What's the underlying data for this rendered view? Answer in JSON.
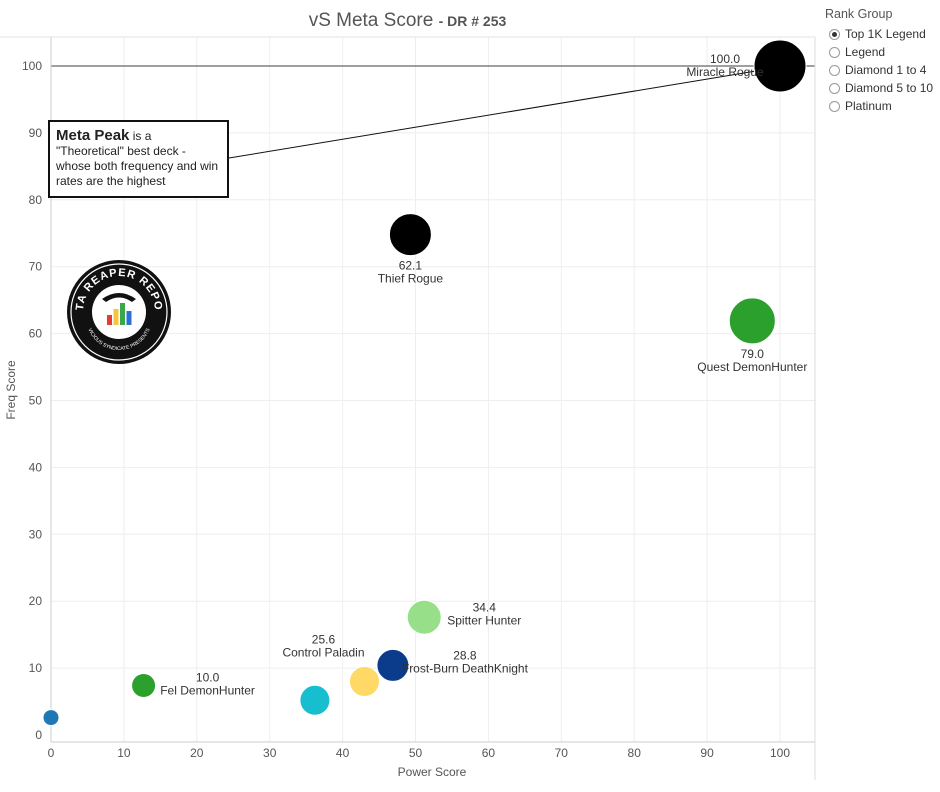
{
  "title": {
    "main": "vS Meta Score",
    "sub": "DR # 253"
  },
  "rank_group": {
    "title": "Rank Group",
    "options": [
      "Top 1K Legend",
      "Legend",
      "Diamond 1 to 4",
      "Diamond 5 to 10",
      "Platinum"
    ],
    "selected": "Top 1K Legend"
  },
  "callout": {
    "bold": "Meta Peak",
    "text": " is a \"Theoretical\" best deck - whose both frequency and win rates are the highest"
  },
  "logo": {
    "text": "DATA REAPER REPORT",
    "subtext": "VICIOUS SYNDICATE PRESENTS",
    "colors": [
      "#e63b2e",
      "#f5c542",
      "#3aa84a",
      "#2e6fd6"
    ]
  },
  "chart_data": {
    "type": "scatter",
    "xlabel": "Power Score",
    "ylabel": "Freq Score",
    "xlim": [
      0,
      104
    ],
    "ylim": [
      0,
      105
    ],
    "x_ticks": [
      0,
      10,
      20,
      30,
      40,
      50,
      60,
      70,
      80,
      90,
      100
    ],
    "y_ticks": [
      0,
      10,
      20,
      30,
      40,
      50,
      60,
      70,
      80,
      90,
      100
    ],
    "grid": true,
    "reference_line_y": 100,
    "points": [
      {
        "name": "Miracle Rogue",
        "score": "100.0",
        "x": 100,
        "y": 100,
        "size": 26,
        "color": "#000000",
        "label_pos": "left"
      },
      {
        "name": "Thief Rogue",
        "score": "62.1",
        "x": 49.3,
        "y": 74.8,
        "size": 21,
        "color": "#000000",
        "label_pos": "below"
      },
      {
        "name": "Quest DemonHunter",
        "score": "79.0",
        "x": 96.2,
        "y": 61.9,
        "size": 23,
        "color": "#2ca02c",
        "label_pos": "below"
      },
      {
        "name": "Spitter Hunter",
        "score": "34.4",
        "x": 51.2,
        "y": 17.6,
        "size": 17,
        "color": "#98df8a",
        "label_pos": "right"
      },
      {
        "name": "Frost-Burn DeathKnight",
        "score": "28.8",
        "x": 46.9,
        "y": 10.4,
        "size": 16,
        "color": "#0b3c8c",
        "label_pos": "right"
      },
      {
        "name": "Control Paladin",
        "score": "25.6",
        "x": 43,
        "y": 8,
        "size": 15,
        "color": "#ffd966",
        "label_pos": "above-left"
      },
      {
        "name": "Fel DemonHunter",
        "score": "10.0",
        "x": 12.7,
        "y": 7.4,
        "size": 12,
        "color": "#2ca02c",
        "label_pos": "right"
      },
      {
        "name": "",
        "score": "",
        "x": 36.2,
        "y": 5.2,
        "size": 15,
        "color": "#17becf",
        "label_pos": "none"
      },
      {
        "name": "",
        "score": "",
        "x": 0,
        "y": 2.6,
        "size": 8,
        "color": "#1f77b4",
        "label_pos": "none"
      }
    ]
  }
}
